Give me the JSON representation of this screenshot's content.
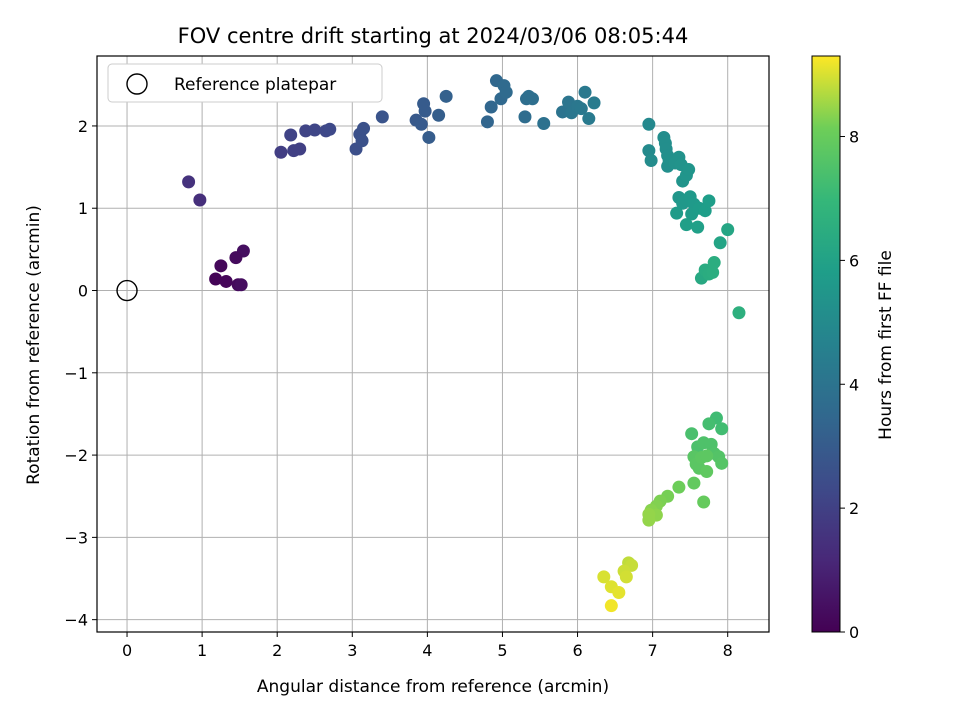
{
  "chart_data": {
    "type": "scatter",
    "title": "FOV centre drift starting at 2024/03/06 08:05:44",
    "xlabel": "Angular distance from reference (arcmin)",
    "ylabel": "Rotation from reference (arcmin)",
    "xlim": [
      -0.4,
      8.55
    ],
    "ylim": [
      -4.15,
      2.85
    ],
    "xticks": [
      0,
      1,
      2,
      3,
      4,
      5,
      6,
      7,
      8
    ],
    "yticks": [
      -4,
      -3,
      -2,
      -1,
      0,
      1,
      2
    ],
    "grid": true,
    "legend": {
      "position": "top-left",
      "entries": [
        "Reference platepar"
      ]
    },
    "reference_point": {
      "x": 0,
      "y": 0,
      "label": "Reference platepar"
    },
    "colorbar": {
      "label": "Hours from first FF file",
      "range": [
        0,
        9.3
      ],
      "ticks": [
        0,
        2,
        4,
        6,
        8
      ],
      "colormap": "viridis"
    },
    "series": [
      {
        "points": [
          {
            "x": 1.55,
            "y": 0.48,
            "c": 0.4
          },
          {
            "x": 1.45,
            "y": 0.4,
            "c": 0.3
          },
          {
            "x": 1.25,
            "y": 0.3,
            "c": 0.2
          },
          {
            "x": 1.18,
            "y": 0.14,
            "c": 0.1
          },
          {
            "x": 1.32,
            "y": 0.11,
            "c": 0.15
          },
          {
            "x": 1.48,
            "y": 0.07,
            "c": 0.25
          },
          {
            "x": 1.52,
            "y": 0.07,
            "c": 0.35
          },
          {
            "x": 0.82,
            "y": 1.32,
            "c": 1.5
          },
          {
            "x": 0.97,
            "y": 1.1,
            "c": 1.4
          },
          {
            "x": 2.05,
            "y": 1.68,
            "c": 1.9
          },
          {
            "x": 2.22,
            "y": 1.7,
            "c": 2.0
          },
          {
            "x": 2.3,
            "y": 1.72,
            "c": 2.0
          },
          {
            "x": 2.18,
            "y": 1.89,
            "c": 2.1
          },
          {
            "x": 2.38,
            "y": 1.94,
            "c": 2.15
          },
          {
            "x": 2.5,
            "y": 1.95,
            "c": 2.2
          },
          {
            "x": 2.65,
            "y": 1.94,
            "c": 2.25
          },
          {
            "x": 2.7,
            "y": 1.96,
            "c": 2.3
          },
          {
            "x": 3.05,
            "y": 1.72,
            "c": 2.5
          },
          {
            "x": 3.1,
            "y": 1.9,
            "c": 2.55
          },
          {
            "x": 3.13,
            "y": 1.82,
            "c": 2.6
          },
          {
            "x": 3.15,
            "y": 1.97,
            "c": 2.6
          },
          {
            "x": 3.4,
            "y": 2.11,
            "c": 2.7
          },
          {
            "x": 3.85,
            "y": 2.07,
            "c": 2.9
          },
          {
            "x": 3.92,
            "y": 2.02,
            "c": 2.95
          },
          {
            "x": 3.95,
            "y": 2.27,
            "c": 3.0
          },
          {
            "x": 3.97,
            "y": 2.18,
            "c": 3.0
          },
          {
            "x": 4.02,
            "y": 1.86,
            "c": 3.05
          },
          {
            "x": 4.15,
            "y": 2.13,
            "c": 3.1
          },
          {
            "x": 4.25,
            "y": 2.36,
            "c": 3.2
          },
          {
            "x": 4.8,
            "y": 2.05,
            "c": 3.4
          },
          {
            "x": 4.85,
            "y": 2.23,
            "c": 3.45
          },
          {
            "x": 4.92,
            "y": 2.55,
            "c": 3.5
          },
          {
            "x": 4.98,
            "y": 2.33,
            "c": 3.55
          },
          {
            "x": 5.02,
            "y": 2.49,
            "c": 3.6
          },
          {
            "x": 5.05,
            "y": 2.41,
            "c": 3.6
          },
          {
            "x": 5.3,
            "y": 2.11,
            "c": 3.7
          },
          {
            "x": 5.32,
            "y": 2.33,
            "c": 3.75
          },
          {
            "x": 5.35,
            "y": 2.36,
            "c": 3.8
          },
          {
            "x": 5.4,
            "y": 2.33,
            "c": 3.8
          },
          {
            "x": 5.55,
            "y": 2.03,
            "c": 3.9
          },
          {
            "x": 5.8,
            "y": 2.17,
            "c": 4.0
          },
          {
            "x": 5.88,
            "y": 2.29,
            "c": 4.05
          },
          {
            "x": 5.92,
            "y": 2.16,
            "c": 4.1
          },
          {
            "x": 6.0,
            "y": 2.24,
            "c": 4.15
          },
          {
            "x": 6.05,
            "y": 2.21,
            "c": 4.2
          },
          {
            "x": 6.1,
            "y": 2.41,
            "c": 4.25
          },
          {
            "x": 6.15,
            "y": 2.09,
            "c": 4.3
          },
          {
            "x": 6.22,
            "y": 2.28,
            "c": 4.35
          },
          {
            "x": 6.95,
            "y": 2.02,
            "c": 4.9
          },
          {
            "x": 6.95,
            "y": 1.7,
            "c": 5.0
          },
          {
            "x": 6.98,
            "y": 1.58,
            "c": 5.05
          },
          {
            "x": 7.15,
            "y": 1.86,
            "c": 5.1
          },
          {
            "x": 7.17,
            "y": 1.79,
            "c": 5.15
          },
          {
            "x": 7.18,
            "y": 1.72,
            "c": 5.15
          },
          {
            "x": 7.2,
            "y": 1.64,
            "c": 5.2
          },
          {
            "x": 7.2,
            "y": 1.51,
            "c": 5.2
          },
          {
            "x": 7.22,
            "y": 1.58,
            "c": 5.25
          },
          {
            "x": 7.3,
            "y": 1.55,
            "c": 5.3
          },
          {
            "x": 7.35,
            "y": 1.62,
            "c": 5.3
          },
          {
            "x": 7.38,
            "y": 1.53,
            "c": 5.35
          },
          {
            "x": 7.4,
            "y": 1.33,
            "c": 5.4
          },
          {
            "x": 7.45,
            "y": 1.4,
            "c": 5.45
          },
          {
            "x": 7.48,
            "y": 1.47,
            "c": 5.45
          },
          {
            "x": 7.35,
            "y": 1.13,
            "c": 5.5
          },
          {
            "x": 7.4,
            "y": 1.06,
            "c": 5.55
          },
          {
            "x": 7.45,
            "y": 1.1,
            "c": 5.55
          },
          {
            "x": 7.5,
            "y": 1.14,
            "c": 5.6
          },
          {
            "x": 7.55,
            "y": 1.05,
            "c": 5.65
          },
          {
            "x": 7.32,
            "y": 0.94,
            "c": 5.7
          },
          {
            "x": 7.52,
            "y": 0.93,
            "c": 5.7
          },
          {
            "x": 7.62,
            "y": 1.0,
            "c": 5.75
          },
          {
            "x": 7.7,
            "y": 0.97,
            "c": 5.8
          },
          {
            "x": 7.75,
            "y": 1.09,
            "c": 5.8
          },
          {
            "x": 7.45,
            "y": 0.8,
            "c": 5.85
          },
          {
            "x": 7.6,
            "y": 0.77,
            "c": 5.9
          },
          {
            "x": 7.9,
            "y": 0.58,
            "c": 6.1
          },
          {
            "x": 8.0,
            "y": 0.74,
            "c": 6.15
          },
          {
            "x": 7.65,
            "y": 0.15,
            "c": 6.3
          },
          {
            "x": 7.7,
            "y": 0.25,
            "c": 6.4
          },
          {
            "x": 7.75,
            "y": 0.2,
            "c": 6.45
          },
          {
            "x": 7.8,
            "y": 0.22,
            "c": 6.5
          },
          {
            "x": 7.82,
            "y": 0.34,
            "c": 6.5
          },
          {
            "x": 8.15,
            "y": -0.27,
            "c": 6.6
          },
          {
            "x": 7.85,
            "y": -1.55,
            "c": 7.2
          },
          {
            "x": 7.92,
            "y": -1.68,
            "c": 7.25
          },
          {
            "x": 7.75,
            "y": -1.62,
            "c": 7.3
          },
          {
            "x": 7.52,
            "y": -1.74,
            "c": 7.4
          },
          {
            "x": 7.6,
            "y": -1.9,
            "c": 7.45
          },
          {
            "x": 7.68,
            "y": -1.85,
            "c": 7.5
          },
          {
            "x": 7.78,
            "y": -1.87,
            "c": 7.5
          },
          {
            "x": 7.82,
            "y": -1.98,
            "c": 7.55
          },
          {
            "x": 7.88,
            "y": -2.02,
            "c": 7.6
          },
          {
            "x": 7.92,
            "y": -2.1,
            "c": 7.65
          },
          {
            "x": 7.55,
            "y": -2.02,
            "c": 7.7
          },
          {
            "x": 7.58,
            "y": -2.11,
            "c": 7.75
          },
          {
            "x": 7.62,
            "y": -2.16,
            "c": 7.75
          },
          {
            "x": 7.65,
            "y": -2.03,
            "c": 7.8
          },
          {
            "x": 7.72,
            "y": -2.01,
            "c": 7.8
          },
          {
            "x": 7.72,
            "y": -2.2,
            "c": 7.85
          },
          {
            "x": 7.55,
            "y": -2.34,
            "c": 7.9
          },
          {
            "x": 7.68,
            "y": -2.57,
            "c": 7.95
          },
          {
            "x": 7.35,
            "y": -2.39,
            "c": 8.1
          },
          {
            "x": 7.2,
            "y": -2.5,
            "c": 8.2
          },
          {
            "x": 7.1,
            "y": -2.56,
            "c": 8.25
          },
          {
            "x": 7.05,
            "y": -2.62,
            "c": 8.3
          },
          {
            "x": 6.98,
            "y": -2.67,
            "c": 8.35
          },
          {
            "x": 7.05,
            "y": -2.73,
            "c": 8.4
          },
          {
            "x": 6.95,
            "y": -2.79,
            "c": 8.45
          },
          {
            "x": 6.95,
            "y": -2.72,
            "c": 8.45
          },
          {
            "x": 6.68,
            "y": -3.31,
            "c": 8.8
          },
          {
            "x": 6.72,
            "y": -3.34,
            "c": 8.85
          },
          {
            "x": 6.62,
            "y": -3.41,
            "c": 8.9
          },
          {
            "x": 6.65,
            "y": -3.48,
            "c": 8.95
          },
          {
            "x": 6.35,
            "y": -3.48,
            "c": 9.0
          },
          {
            "x": 6.45,
            "y": -3.6,
            "c": 9.05
          },
          {
            "x": 6.55,
            "y": -3.67,
            "c": 9.1
          },
          {
            "x": 6.45,
            "y": -3.83,
            "c": 9.2
          }
        ]
      }
    ]
  }
}
